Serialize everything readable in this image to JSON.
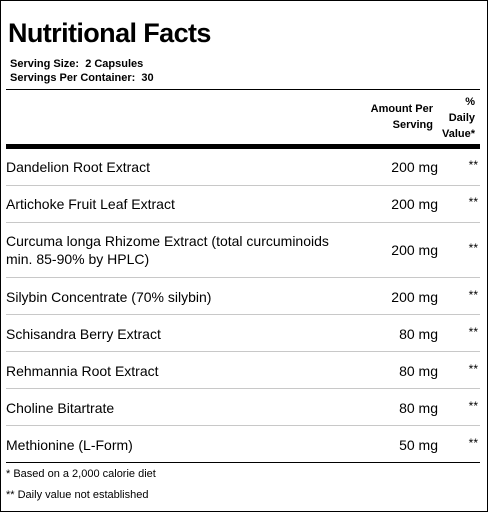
{
  "panel": {
    "title": "Nutritional Facts",
    "serving_size": "Serving Size:  2 Capsules",
    "servings_per_container": "Servings Per Container:  30"
  },
  "table_header": {
    "amount_line1": "Amount Per",
    "amount_line2": "Serving",
    "dv_line1": "%",
    "dv_line2": "Daily",
    "dv_line3": "Value*"
  },
  "rows": [
    {
      "name": "Dandelion Root Extract",
      "amount": "200 mg",
      "dv": "**"
    },
    {
      "name": "Artichoke Fruit Leaf Extract",
      "amount": "200 mg",
      "dv": "**"
    },
    {
      "name": "Curcuma longa Rhizome Extract (total curcuminoids\nmin. 85-90% by HPLC)",
      "amount": "200 mg",
      "dv": "**"
    },
    {
      "name": "Silybin Concentrate (70% silybin)",
      "amount": "200 mg",
      "dv": "**"
    },
    {
      "name": "Schisandra Berry Extract",
      "amount": "80 mg",
      "dv": "**"
    },
    {
      "name": "Rehmannia Root Extract",
      "amount": "80 mg",
      "dv": "**"
    },
    {
      "name": "Choline Bitartrate",
      "amount": "80 mg",
      "dv": "**"
    },
    {
      "name": "Methionine (L-Form)",
      "amount": "50 mg",
      "dv": "**"
    }
  ],
  "footnotes": {
    "calorie_note": "* Based on a 2,000 calorie diet",
    "dv_note": "** Daily value not established"
  }
}
